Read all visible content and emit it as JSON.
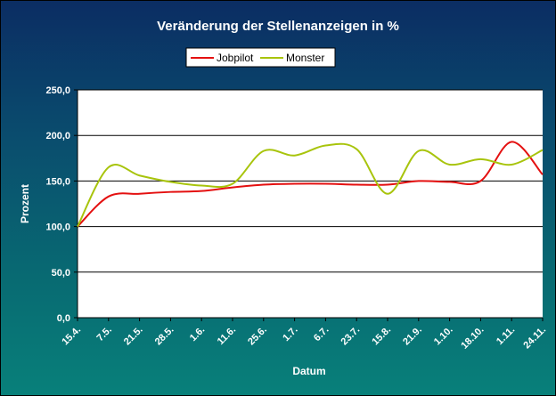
{
  "chart_data": {
    "type": "line",
    "title": "Veränderung der Stellenanzeigen in %",
    "xlabel": "Datum",
    "ylabel": "Prozent",
    "ylim": [
      0,
      250
    ],
    "yticks": [
      0,
      50,
      100,
      150,
      200,
      250
    ],
    "ytick_labels": [
      "0,0",
      "50,0",
      "100,0",
      "150,0",
      "200,0",
      "250,0"
    ],
    "categories": [
      "15.4.",
      "7.5.",
      "21.5.",
      "28.5.",
      "1.6.",
      "11.6.",
      "25.6.",
      "1.7.",
      "6.7.",
      "23.7.",
      "15.8.",
      "21.9.",
      "1.10.",
      "18.10.",
      "1.11.",
      "24.11."
    ],
    "series": [
      {
        "name": "Jobpilot",
        "color": "#e41010",
        "values": [
          100,
          133,
          136,
          138,
          139,
          143,
          146,
          147,
          147,
          146,
          146,
          150,
          149,
          150,
          193,
          157
        ]
      },
      {
        "name": "Monster",
        "color": "#a8c40c",
        "values": [
          100,
          165,
          156,
          149,
          145,
          147,
          183,
          178,
          189,
          185,
          136,
          183,
          168,
          174,
          168,
          184
        ]
      }
    ],
    "legend": {
      "position": "top"
    }
  }
}
